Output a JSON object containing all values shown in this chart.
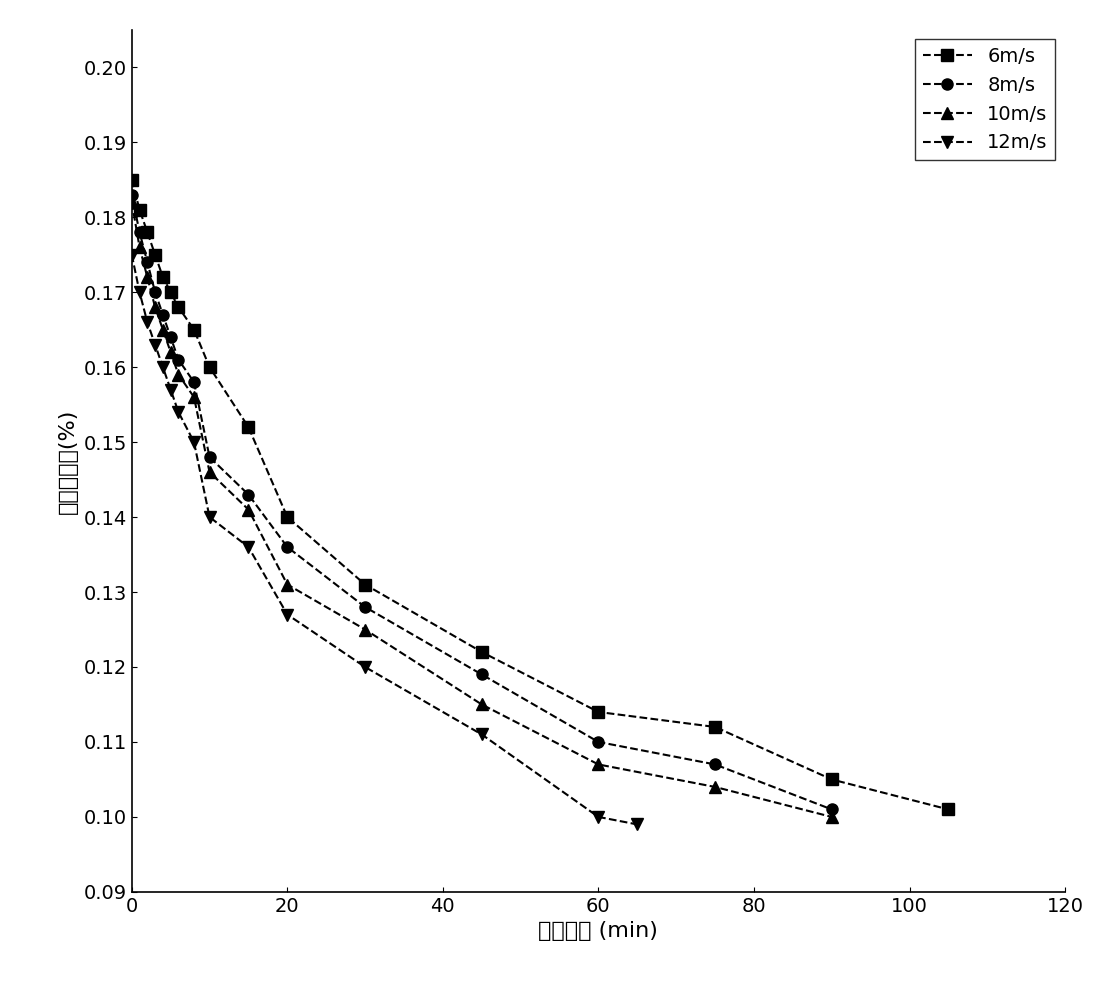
{
  "series": [
    {
      "label": "6m/s",
      "marker": "s",
      "color": "#000000",
      "linestyle": "--",
      "x": [
        0,
        1,
        2,
        3,
        4,
        5,
        6,
        8,
        10,
        15,
        20,
        30,
        45,
        60,
        75,
        90,
        105
      ],
      "y": [
        0.185,
        0.181,
        0.178,
        0.175,
        0.172,
        0.17,
        0.168,
        0.165,
        0.16,
        0.152,
        0.14,
        0.131,
        0.122,
        0.114,
        0.112,
        0.105,
        0.101
      ]
    },
    {
      "label": "8m/s",
      "marker": "o",
      "color": "#000000",
      "linestyle": "--",
      "x": [
        0,
        1,
        2,
        3,
        4,
        5,
        6,
        8,
        10,
        15,
        20,
        30,
        45,
        60,
        75,
        90
      ],
      "y": [
        0.183,
        0.178,
        0.174,
        0.17,
        0.167,
        0.164,
        0.161,
        0.158,
        0.148,
        0.143,
        0.136,
        0.128,
        0.119,
        0.11,
        0.107,
        0.101
      ]
    },
    {
      "label": "10m/s",
      "marker": "^",
      "color": "#000000",
      "linestyle": "--",
      "x": [
        0,
        1,
        2,
        3,
        4,
        5,
        6,
        8,
        10,
        15,
        20,
        30,
        45,
        60,
        75,
        90
      ],
      "y": [
        0.182,
        0.176,
        0.172,
        0.168,
        0.165,
        0.162,
        0.159,
        0.156,
        0.146,
        0.141,
        0.131,
        0.125,
        0.115,
        0.107,
        0.104,
        0.1
      ]
    },
    {
      "label": "12m/s",
      "marker": "v",
      "color": "#000000",
      "linestyle": "--",
      "x": [
        0,
        1,
        2,
        3,
        4,
        5,
        6,
        8,
        10,
        15,
        20,
        30,
        45,
        60,
        65
      ],
      "y": [
        0.175,
        0.17,
        0.166,
        0.163,
        0.16,
        0.157,
        0.154,
        0.15,
        0.14,
        0.136,
        0.127,
        0.12,
        0.111,
        0.1,
        0.099
      ]
    }
  ],
  "xlabel": "干燥时间 (min)",
  "ylabel": "干基含水率(%)",
  "xlim": [
    0,
    120
  ],
  "ylim": [
    0.09,
    0.205
  ],
  "xticks": [
    0,
    20,
    40,
    60,
    80,
    100,
    120
  ],
  "yticks": [
    0.09,
    0.1,
    0.11,
    0.12,
    0.13,
    0.14,
    0.15,
    0.16,
    0.17,
    0.18,
    0.19,
    0.2
  ],
  "legend_loc": "upper right",
  "markersize": 8,
  "linewidth": 1.5,
  "background_color": "#ffffff",
  "figsize": [
    10.98,
    9.91
  ],
  "dpi": 100
}
